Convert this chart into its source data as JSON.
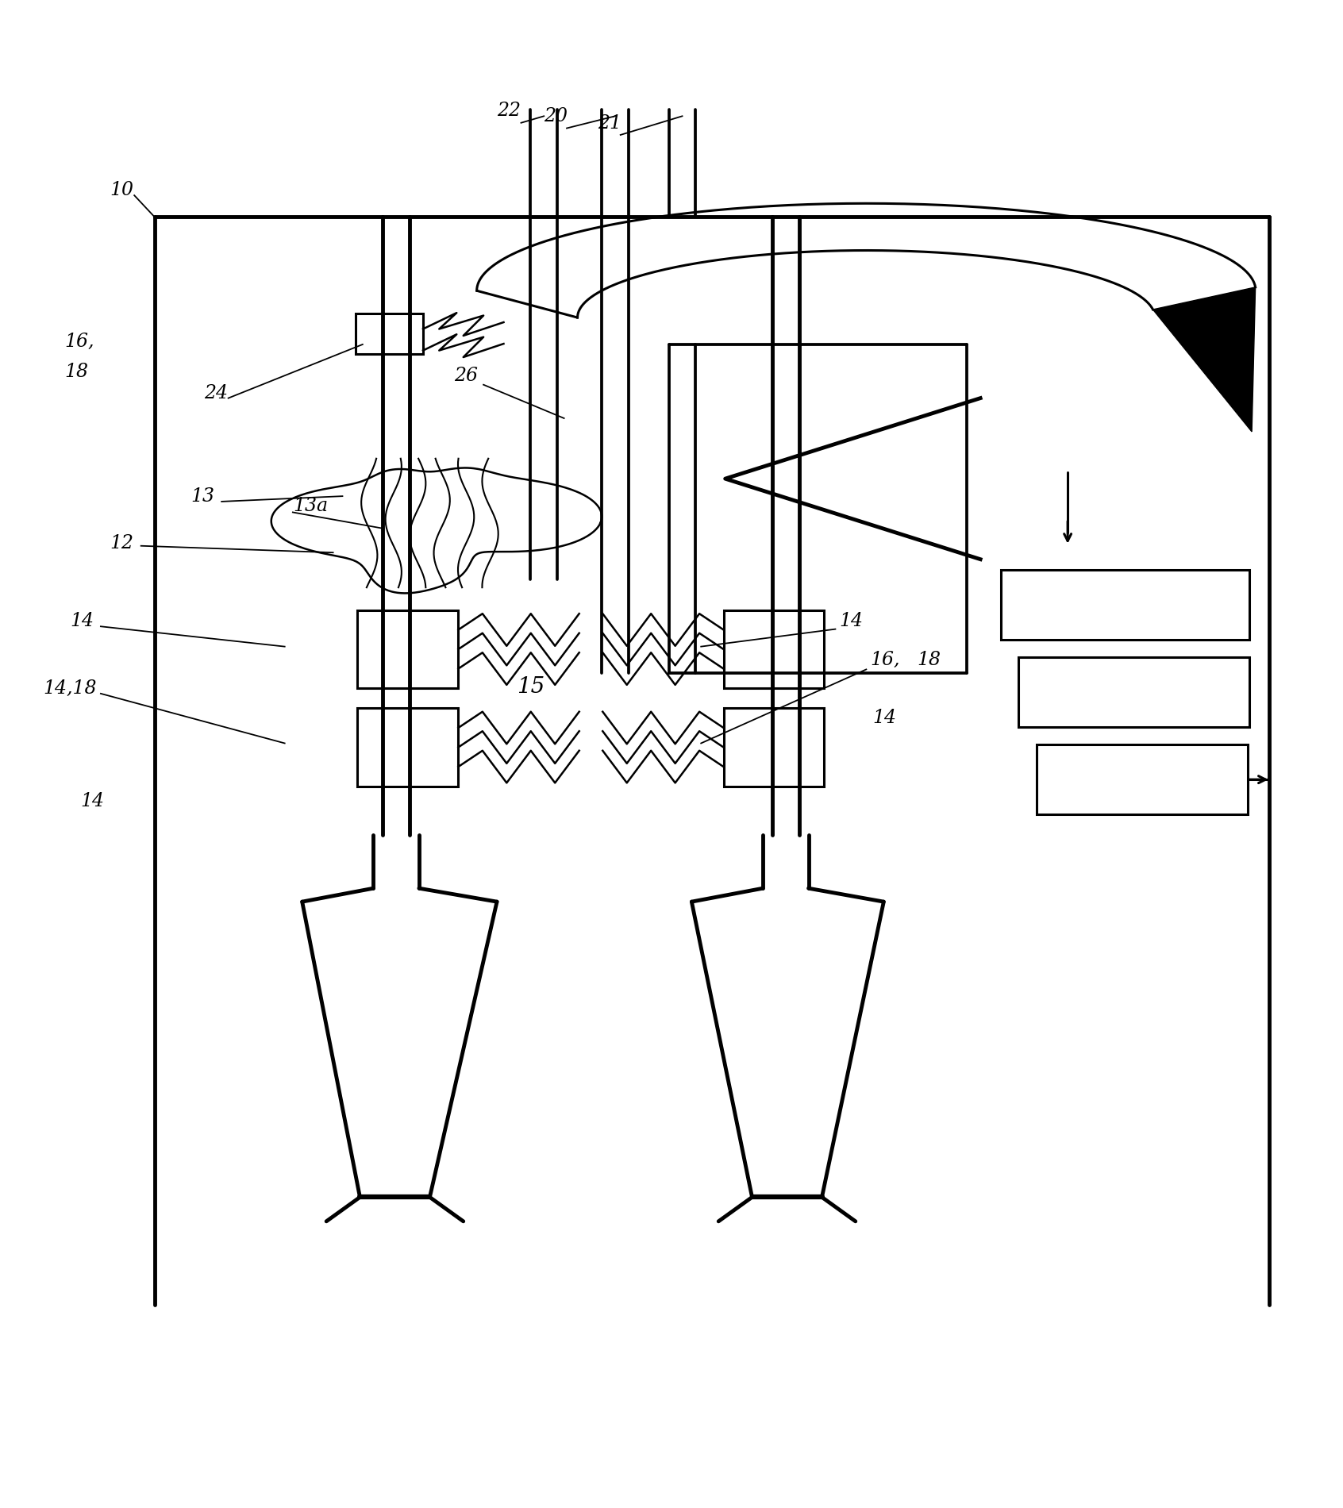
{
  "bg": "#ffffff",
  "lc": "#000000",
  "fig_w": 16.92,
  "fig_h": 19.0,
  "lw_main": 3.5,
  "lw_med": 2.2,
  "lw_thin": 1.5,
  "lw_spark": 1.8
}
